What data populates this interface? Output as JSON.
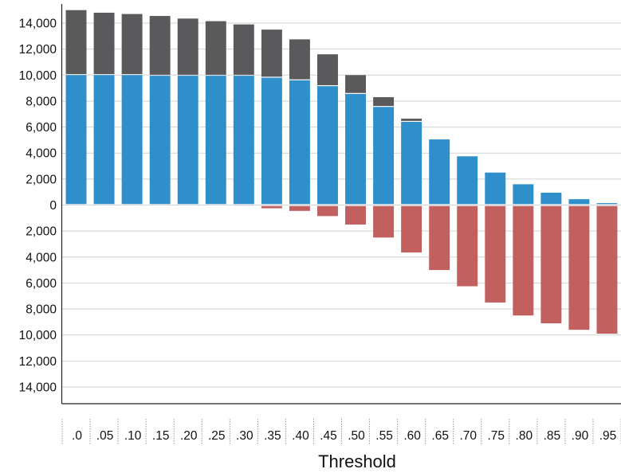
{
  "chart_data": {
    "type": "bar",
    "stacked": true,
    "diverging": true,
    "xlabel": "Threshold",
    "ylabel": "",
    "title": "",
    "ylim": [
      -15000,
      15000
    ],
    "grid": true,
    "categories": [
      ".0",
      ".05",
      ".10",
      ".15",
      ".20",
      ".25",
      ".30",
      ".35",
      ".40",
      ".45",
      ".50",
      ".55",
      ".60",
      ".65",
      ".70",
      ".75",
      ".80",
      ".85",
      ".90",
      ".95"
    ],
    "y_ticks": [
      14000,
      12000,
      10000,
      8000,
      6000,
      4000,
      2000,
      0,
      -2000,
      -4000,
      -6000,
      -8000,
      -10000,
      -12000,
      -14000
    ],
    "y_tick_labels": [
      "14,000",
      "12,000",
      "10,000",
      "8,000",
      "6,000",
      "4,000",
      "2,000",
      "0",
      "2,000",
      "4,000",
      "6,000",
      "8,000",
      "10,000",
      "12,000",
      "14,000"
    ],
    "series": [
      {
        "color": "#2e8fcb",
        "direction": "up",
        "values": [
          10000,
          10000,
          10000,
          9950,
          9950,
          9950,
          9950,
          9800,
          9600,
          9150,
          8550,
          7550,
          6400,
          5050,
          3750,
          2500,
          1600,
          950,
          450,
          150
        ]
      },
      {
        "color": "#5a5a5c",
        "direction": "up",
        "values": [
          5000,
          4800,
          4700,
          4600,
          4400,
          4200,
          3950,
          3700,
          3150,
          2450,
          1450,
          750,
          250,
          50,
          0,
          0,
          0,
          0,
          0,
          0
        ]
      },
      {
        "color": "#c26060",
        "direction": "down",
        "values": [
          0,
          0,
          0,
          50,
          50,
          50,
          80,
          250,
          450,
          850,
          1500,
          2500,
          3650,
          5000,
          6250,
          7500,
          8500,
          9100,
          9600,
          9900
        ]
      }
    ]
  }
}
